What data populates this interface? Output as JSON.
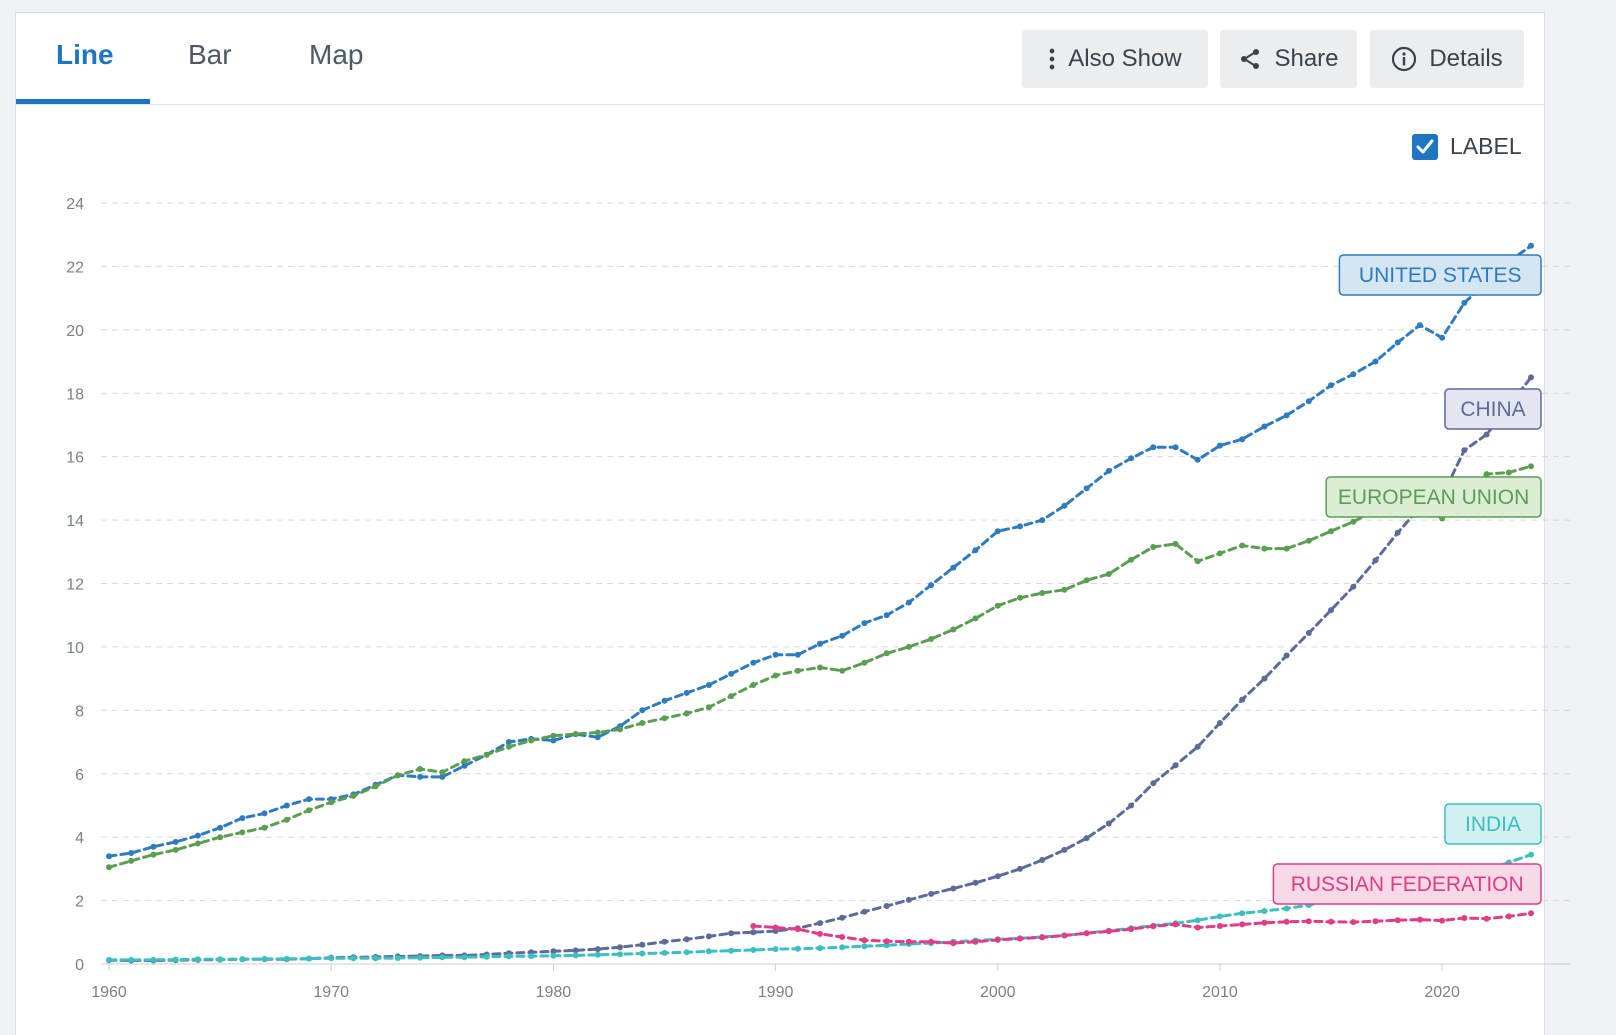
{
  "tabs": [
    {
      "label": "Line",
      "active": true
    },
    {
      "label": "Bar",
      "active": false
    },
    {
      "label": "Map",
      "active": false
    }
  ],
  "toolbar": {
    "also_show": "Also Show",
    "share": "Share",
    "details": "Details"
  },
  "label_toggle": {
    "label": "LABEL",
    "checked": true
  },
  "colors": {
    "accent": "#1f76c0",
    "grid": "#d9d9d9",
    "axis_text": "#7a8288"
  },
  "chart_data": {
    "type": "line",
    "title": "",
    "xlabel": "",
    "ylabel": "",
    "xlim": [
      1960,
      2024
    ],
    "ylim": [
      0,
      24
    ],
    "xticks": [
      1960,
      1970,
      1980,
      1990,
      2000,
      2010,
      2020
    ],
    "yticks": [
      0,
      2,
      4,
      6,
      8,
      10,
      12,
      14,
      16,
      18,
      20,
      22,
      24
    ],
    "grid": true,
    "x": [
      1960,
      1961,
      1962,
      1963,
      1964,
      1965,
      1966,
      1967,
      1968,
      1969,
      1970,
      1971,
      1972,
      1973,
      1974,
      1975,
      1976,
      1977,
      1978,
      1979,
      1980,
      1981,
      1982,
      1983,
      1984,
      1985,
      1986,
      1987,
      1988,
      1989,
      1990,
      1991,
      1992,
      1993,
      1994,
      1995,
      1996,
      1997,
      1998,
      1999,
      2000,
      2001,
      2002,
      2003,
      2004,
      2005,
      2006,
      2007,
      2008,
      2009,
      2010,
      2011,
      2012,
      2013,
      2014,
      2015,
      2016,
      2017,
      2018,
      2019,
      2020,
      2021,
      2022,
      2023,
      2024
    ],
    "series": [
      {
        "name": "UNITED STATES",
        "color": "#2e7bbf",
        "label_fill": "#d4e5f3",
        "values": [
          3.4,
          3.5,
          3.7,
          3.85,
          4.05,
          4.3,
          4.6,
          4.75,
          5.0,
          5.2,
          5.2,
          5.35,
          5.65,
          5.95,
          5.9,
          5.9,
          6.25,
          6.6,
          7.0,
          7.1,
          7.05,
          7.25,
          7.15,
          7.5,
          8.0,
          8.3,
          8.55,
          8.8,
          9.15,
          9.5,
          9.75,
          9.75,
          10.1,
          10.35,
          10.75,
          11.0,
          11.4,
          11.95,
          12.5,
          13.05,
          13.65,
          13.8,
          14.0,
          14.45,
          15.0,
          15.55,
          15.95,
          16.3,
          16.3,
          15.9,
          16.35,
          16.55,
          16.95,
          17.3,
          17.75,
          18.25,
          18.6,
          19.0,
          19.6,
          20.15,
          19.75,
          20.85,
          21.5,
          22.15,
          22.65
        ]
      },
      {
        "name": "CHINA",
        "color": "#5d6b99",
        "label_fill": "#e3e5f1",
        "values": [
          0.12,
          0.11,
          0.11,
          0.12,
          0.13,
          0.14,
          0.15,
          0.15,
          0.15,
          0.17,
          0.2,
          0.21,
          0.22,
          0.24,
          0.25,
          0.27,
          0.27,
          0.3,
          0.34,
          0.37,
          0.4,
          0.43,
          0.47,
          0.53,
          0.61,
          0.7,
          0.78,
          0.87,
          0.97,
          1.0,
          1.04,
          1.13,
          1.29,
          1.46,
          1.65,
          1.83,
          2.02,
          2.21,
          2.38,
          2.56,
          2.77,
          3.0,
          3.28,
          3.6,
          3.97,
          4.43,
          5.0,
          5.7,
          6.27,
          6.85,
          7.6,
          8.34,
          9.0,
          9.73,
          10.44,
          11.16,
          11.9,
          12.73,
          13.6,
          14.4,
          14.75,
          16.2,
          16.7,
          17.6,
          18.5
        ]
      },
      {
        "name": "EUROPEAN UNION",
        "color": "#5a9e52",
        "label_fill": "#dcedd6",
        "values": [
          3.05,
          3.25,
          3.45,
          3.6,
          3.8,
          4.0,
          4.15,
          4.3,
          4.55,
          4.85,
          5.1,
          5.3,
          5.6,
          5.95,
          6.15,
          6.05,
          6.4,
          6.6,
          6.85,
          7.05,
          7.2,
          7.25,
          7.3,
          7.4,
          7.6,
          7.75,
          7.9,
          8.1,
          8.45,
          8.8,
          9.1,
          9.25,
          9.35,
          9.25,
          9.5,
          9.8,
          10.0,
          10.25,
          10.55,
          10.9,
          11.3,
          11.55,
          11.7,
          11.8,
          12.1,
          12.3,
          12.75,
          13.15,
          13.25,
          12.7,
          12.95,
          13.2,
          13.1,
          13.1,
          13.35,
          13.65,
          13.95,
          14.3,
          14.45,
          14.5,
          14.05,
          14.9,
          15.45,
          15.5,
          15.7
        ]
      },
      {
        "name": "INDIA",
        "color": "#3bbfc1",
        "label_fill": "#d2f0f1",
        "values": [
          0.13,
          0.13,
          0.13,
          0.14,
          0.15,
          0.15,
          0.15,
          0.16,
          0.16,
          0.17,
          0.18,
          0.18,
          0.18,
          0.19,
          0.2,
          0.21,
          0.21,
          0.23,
          0.24,
          0.25,
          0.26,
          0.27,
          0.29,
          0.31,
          0.33,
          0.35,
          0.37,
          0.4,
          0.42,
          0.44,
          0.47,
          0.48,
          0.5,
          0.53,
          0.56,
          0.59,
          0.63,
          0.66,
          0.7,
          0.74,
          0.78,
          0.81,
          0.85,
          0.9,
          0.97,
          1.05,
          1.13,
          1.21,
          1.28,
          1.38,
          1.5,
          1.6,
          1.67,
          1.75,
          1.86,
          1.99,
          2.13,
          2.27,
          2.42,
          2.54,
          2.4,
          2.74,
          2.97,
          3.2,
          3.45
        ]
      },
      {
        "name": "RUSSIAN FEDERATION",
        "color": "#e23c86",
        "label_fill": "#f8d9e7",
        "values": [
          null,
          null,
          null,
          null,
          null,
          null,
          null,
          null,
          null,
          null,
          null,
          null,
          null,
          null,
          null,
          null,
          null,
          null,
          null,
          null,
          null,
          null,
          null,
          null,
          null,
          null,
          null,
          null,
          null,
          1.2,
          1.15,
          1.1,
          0.95,
          0.85,
          0.75,
          0.72,
          0.7,
          0.7,
          0.66,
          0.7,
          0.76,
          0.8,
          0.84,
          0.9,
          0.97,
          1.03,
          1.1,
          1.19,
          1.25,
          1.15,
          1.2,
          1.25,
          1.3,
          1.33,
          1.35,
          1.33,
          1.32,
          1.35,
          1.38,
          1.4,
          1.37,
          1.45,
          1.43,
          1.5,
          1.6
        ]
      }
    ]
  }
}
